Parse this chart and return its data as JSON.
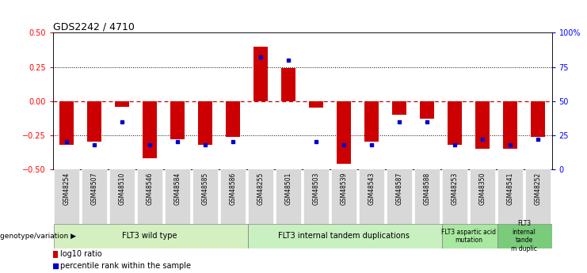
{
  "title": "GDS2242 / 4710",
  "samples": [
    "GSM48254",
    "GSM48507",
    "GSM48510",
    "GSM48546",
    "GSM48584",
    "GSM48585",
    "GSM48586",
    "GSM48255",
    "GSM48501",
    "GSM48503",
    "GSM48539",
    "GSM48543",
    "GSM48587",
    "GSM48588",
    "GSM48253",
    "GSM48350",
    "GSM48541",
    "GSM48252"
  ],
  "log10_ratio": [
    -0.32,
    -0.3,
    -0.04,
    -0.42,
    -0.28,
    -0.32,
    -0.26,
    0.4,
    0.24,
    -0.05,
    -0.46,
    -0.3,
    -0.1,
    -0.13,
    -0.32,
    -0.35,
    -0.35,
    -0.26
  ],
  "percentile_rank": [
    20,
    18,
    35,
    18,
    20,
    18,
    20,
    82,
    80,
    20,
    18,
    18,
    35,
    35,
    18,
    22,
    18,
    22
  ],
  "groups": [
    {
      "label": "FLT3 wild type",
      "start": 0,
      "end": 7,
      "color": "#d4f0c0"
    },
    {
      "label": "FLT3 internal tandem duplications",
      "start": 7,
      "end": 14,
      "color": "#c8f0c0"
    },
    {
      "label": "FLT3 aspartic acid\nmutation",
      "start": 14,
      "end": 16,
      "color": "#a8e8a0"
    },
    {
      "label": "FLT3\ninternal\ntande\nm duplic",
      "start": 16,
      "end": 18,
      "color": "#7acc7a"
    }
  ],
  "group_label_prefix": "genotype/variation ▶",
  "ylim": [
    -0.5,
    0.5
  ],
  "yticks_left": [
    -0.5,
    -0.25,
    0,
    0.25,
    0.5
  ],
  "yticks_right": [
    0,
    25,
    50,
    75,
    100
  ],
  "bar_color": "#cc0000",
  "dot_color": "#0000cc",
  "hline_color": "#cc0000",
  "dotted_color": "black",
  "background_color": "#ffffff",
  "legend_bar_label": "log10 ratio",
  "legend_dot_label": "percentile rank within the sample"
}
